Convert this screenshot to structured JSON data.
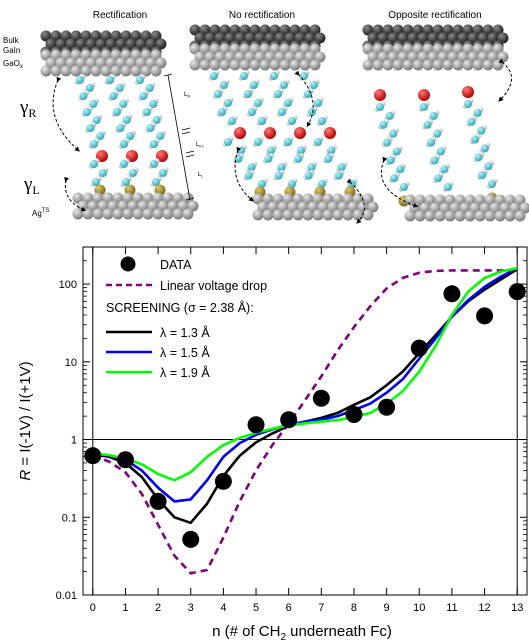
{
  "schematic": {
    "panel_titles": [
      "Rectification",
      "No rectification",
      "Opposite rectification"
    ],
    "top_labels": [
      "Bulk",
      "GaIn",
      "GaO"
    ],
    "top_label_sub": "x",
    "bottom_label": "Ag",
    "bottom_label_sup": "TS",
    "gamma_symbol": "γ",
    "gamma_r_sub": "R",
    "gamma_l_sub": "L",
    "dim_labels": [
      "L",
      "L",
      "L"
    ],
    "dim_subs": [
      "R",
      "Fc",
      "L"
    ],
    "colors": {
      "top_electrode": "#3c3c3c",
      "oxide": "#a8a8a8",
      "bottom_electrode": "#9a9a9a",
      "carbon": "#3fc4d1",
      "hydrogen": "#e4e4e4",
      "ferrocene": "#dd1111",
      "sulfur": "#a0892a"
    }
  },
  "chart_data": {
    "type": "scatter",
    "title": "",
    "xlabel_parts": {
      "before": "n (# of CH",
      "sub": "2",
      "after": " underneath Fc)"
    },
    "ylabel_parts": {
      "italic": "R",
      "rest": " = I(-1V) / I(+1V)"
    },
    "x_ticks": [
      0,
      1,
      2,
      3,
      4,
      5,
      6,
      7,
      8,
      9,
      10,
      11,
      12,
      13
    ],
    "y_ticks": [
      0.01,
      0.1,
      1,
      10,
      100
    ],
    "y_tick_labels": [
      "0.01",
      "0.1",
      "1",
      "10",
      "100"
    ],
    "xlim": [
      -0.3,
      13.3
    ],
    "ylim": [
      0.01,
      300
    ],
    "y_scale": "log",
    "reference_lines": {
      "y": 1,
      "x": [
        0,
        13
      ]
    },
    "legend_position": "top-left",
    "screening_header": "SCREENING (σ = 2.38 Å):",
    "series": [
      {
        "name": "DATA",
        "kind": "points",
        "color": "#000000",
        "x": [
          0,
          1,
          2,
          3,
          4,
          5,
          6,
          7,
          8,
          9,
          10,
          11,
          12,
          13
        ],
        "y": [
          0.62,
          0.55,
          0.16,
          0.052,
          0.29,
          1.55,
          1.8,
          3.4,
          2.1,
          2.6,
          15,
          75,
          39,
          80
        ]
      },
      {
        "name": "Linear voltage drop",
        "kind": "dashed",
        "color": "#800080",
        "x": [
          0,
          0.5,
          1,
          1.5,
          2,
          2.5,
          3,
          3.5,
          4,
          4.5,
          5,
          5.5,
          6,
          6.5,
          7,
          7.5,
          8,
          8.5,
          9,
          9.5,
          10,
          10.5,
          11,
          11.5,
          12,
          12.5,
          13
        ],
        "y": [
          0.62,
          0.52,
          0.38,
          0.2,
          0.08,
          0.032,
          0.019,
          0.021,
          0.055,
          0.16,
          0.4,
          0.85,
          1.6,
          3.2,
          6.5,
          14,
          28,
          52,
          88,
          120,
          140,
          148,
          150,
          150,
          150,
          150,
          150
        ]
      },
      {
        "name": "λ = 1.3 Å",
        "kind": "line",
        "color": "#000000",
        "x": [
          0,
          0.5,
          1,
          1.5,
          2,
          2.5,
          3,
          3.5,
          4,
          4.5,
          5,
          5.5,
          6,
          6.5,
          7,
          7.5,
          8,
          8.5,
          9,
          9.5,
          10,
          10.5,
          11,
          11.5,
          12,
          12.5,
          13
        ],
        "y": [
          0.65,
          0.6,
          0.5,
          0.33,
          0.17,
          0.1,
          0.085,
          0.15,
          0.34,
          0.62,
          0.92,
          1.2,
          1.5,
          1.7,
          1.9,
          2.2,
          2.8,
          3.5,
          5.0,
          7.5,
          13,
          22,
          38,
          60,
          85,
          115,
          155
        ]
      },
      {
        "name": "λ = 1.5 Å",
        "kind": "line",
        "color": "#0000ff",
        "x": [
          0,
          0.5,
          1,
          1.5,
          2,
          2.5,
          3,
          3.5,
          4,
          4.5,
          5,
          5.5,
          6,
          6.5,
          7,
          7.5,
          8,
          8.5,
          9,
          9.5,
          10,
          10.5,
          11,
          11.5,
          12,
          12.5,
          13
        ],
        "y": [
          0.66,
          0.62,
          0.55,
          0.4,
          0.24,
          0.16,
          0.17,
          0.3,
          0.6,
          0.9,
          1.15,
          1.35,
          1.55,
          1.7,
          1.8,
          2.0,
          2.4,
          2.9,
          4.0,
          6.0,
          11,
          20,
          38,
          62,
          92,
          125,
          160
        ]
      },
      {
        "name": "λ = 1.9 Å",
        "kind": "line",
        "color": "#00ff00",
        "x": [
          0,
          0.5,
          1,
          1.5,
          2,
          2.5,
          3,
          3.5,
          4,
          4.5,
          5,
          5.5,
          6,
          6.5,
          7,
          7.5,
          8,
          8.5,
          9,
          9.5,
          10,
          10.5,
          11,
          11.5,
          12,
          12.5,
          13
        ],
        "y": [
          0.66,
          0.63,
          0.57,
          0.48,
          0.36,
          0.3,
          0.38,
          0.6,
          0.85,
          1.05,
          1.22,
          1.38,
          1.52,
          1.62,
          1.7,
          1.78,
          1.95,
          2.2,
          2.9,
          4.2,
          7.5,
          16,
          40,
          80,
          120,
          145,
          160
        ]
      }
    ]
  }
}
